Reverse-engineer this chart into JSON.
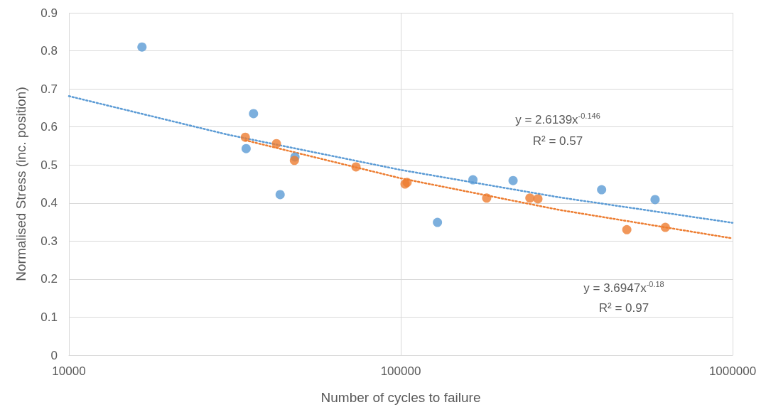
{
  "chart_data": {
    "type": "scatter",
    "xlabel": "Number of cycles to failure",
    "ylabel": "Normalised Stress (inc. position)",
    "log": "x",
    "grid": true,
    "marker": "circle",
    "xlim": [
      10000,
      1000000
    ],
    "xticks": [
      10000,
      100000,
      1000000
    ],
    "ylim": [
      0,
      0.9
    ],
    "yticks": [
      0,
      0.1,
      0.2,
      0.3,
      0.4,
      0.5,
      0.6,
      0.7,
      0.8,
      0.9
    ],
    "series": [
      {
        "color": "#5b9bd5",
        "x": [
          16600,
          36000,
          34200,
          43300,
          48000,
          129000,
          165000,
          218000,
          403000,
          584000
        ],
        "values": [
          0.81,
          0.635,
          0.543,
          0.422,
          0.521,
          0.349,
          0.461,
          0.459,
          0.435,
          0.409
        ]
      },
      {
        "color": "#ed7d31",
        "x": [
          34000,
          42200,
          47800,
          73300,
          103000,
          104500,
          181500,
          245000,
          259000,
          480000,
          627000
        ],
        "values": [
          0.573,
          0.556,
          0.512,
          0.495,
          0.45,
          0.454,
          0.413,
          0.413,
          0.411,
          0.33,
          0.336
        ]
      },
      {
        "type": "line",
        "color": "#5b9bd5",
        "line_style": "dotted",
        "marker": "none",
        "x": [
          10000,
          30000,
          100000,
          300000,
          1000000
        ],
        "values": [
          0.681,
          0.58,
          0.487,
          0.415,
          0.348
        ]
      },
      {
        "type": "line",
        "color": "#ed7d31",
        "line_style": "dotted",
        "marker": "none",
        "x": [
          34000,
          100000,
          300000,
          1000000
        ],
        "values": [
          0.565,
          0.465,
          0.382,
          0.307
        ]
      }
    ],
    "annotations": [
      "y = 2.6139x$^{-0.146}$",
      "R² = 0.57",
      "y = 3.6947x$^{-0.18}$",
      "R² = 0.97"
    ]
  }
}
